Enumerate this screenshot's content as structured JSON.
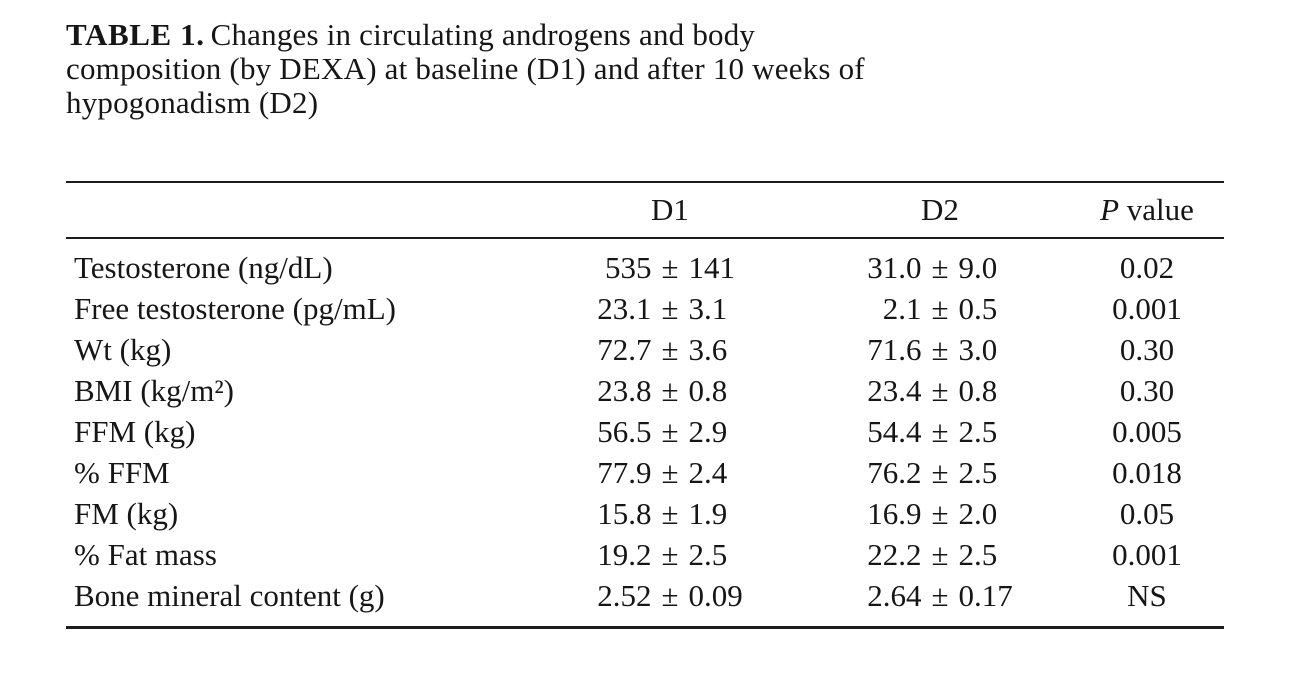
{
  "caption": {
    "label": "TABLE 1.",
    "lines": [
      "Changes in circulating androgens and body",
      "composition (by DEXA) at baseline (D1) and after 10 weeks of",
      "hypogonadism (D2)"
    ]
  },
  "table": {
    "pm": "±",
    "columns": {
      "d1": "D1",
      "d2": "D2",
      "p": {
        "em": "P",
        "text": "value"
      }
    },
    "rows": [
      {
        "label": "Testosterone (ng/dL)",
        "d1": {
          "m": "535",
          "s": "141"
        },
        "d2": {
          "m": "31.0",
          "s": "9.0"
        },
        "p": "0.02"
      },
      {
        "label": "Free testosterone (pg/mL)",
        "d1": {
          "m": "23.1",
          "s": "3.1"
        },
        "d2": {
          "m": "2.1",
          "s": "0.5"
        },
        "p": "0.001"
      },
      {
        "label": "Wt (kg)",
        "d1": {
          "m": "72.7",
          "s": "3.6"
        },
        "d2": {
          "m": "71.6",
          "s": "3.0"
        },
        "p": "0.30"
      },
      {
        "label": "BMI (kg/m²)",
        "d1": {
          "m": "23.8",
          "s": "0.8"
        },
        "d2": {
          "m": "23.4",
          "s": "0.8"
        },
        "p": "0.30"
      },
      {
        "label": "FFM (kg)",
        "d1": {
          "m": "56.5",
          "s": "2.9"
        },
        "d2": {
          "m": "54.4",
          "s": "2.5"
        },
        "p": "0.005"
      },
      {
        "label": "% FFM",
        "d1": {
          "m": "77.9",
          "s": "2.4"
        },
        "d2": {
          "m": "76.2",
          "s": "2.5"
        },
        "p": "0.018"
      },
      {
        "label": "FM (kg)",
        "d1": {
          "m": "15.8",
          "s": "1.9"
        },
        "d2": {
          "m": "16.9",
          "s": "2.0"
        },
        "p": "0.05"
      },
      {
        "label": "% Fat mass",
        "d1": {
          "m": "19.2",
          "s": "2.5"
        },
        "d2": {
          "m": "22.2",
          "s": "2.5"
        },
        "p": "0.001"
      },
      {
        "label": "Bone mineral content (g)",
        "d1": {
          "m": "2.52",
          "s": "0.09"
        },
        "d2": {
          "m": "2.64",
          "s": "0.17"
        },
        "p": "NS"
      }
    ]
  }
}
